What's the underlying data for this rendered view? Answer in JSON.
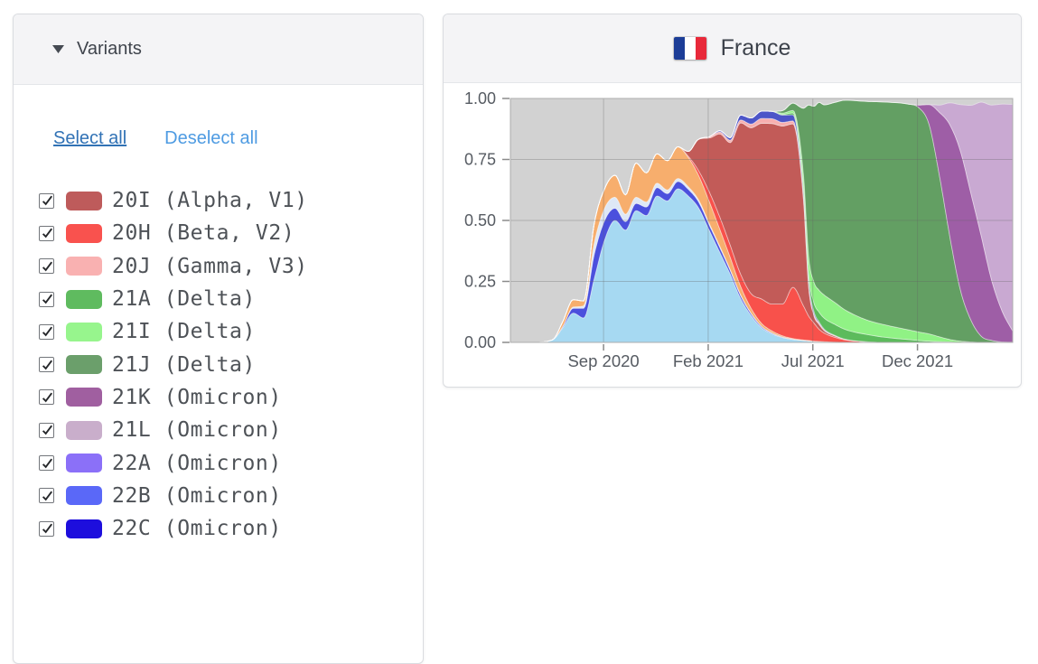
{
  "sidebar": {
    "title": "Variants",
    "select_all": "Select all",
    "deselect_all": "Deselect all",
    "variants": [
      {
        "label": "20I (Alpha, V1)",
        "color": "#BE5B5B",
        "checked": true
      },
      {
        "label": "20H (Beta, V2)",
        "color": "#F9524E",
        "checked": true
      },
      {
        "label": "20J (Gamma, V3)",
        "color": "#F9B1B1",
        "checked": true
      },
      {
        "label": "21A (Delta)",
        "color": "#5FBB5F",
        "checked": true
      },
      {
        "label": "21I (Delta)",
        "color": "#97F58D",
        "checked": true
      },
      {
        "label": "21J (Delta)",
        "color": "#6B9F6B",
        "checked": true
      },
      {
        "label": "21K (Omicron)",
        "color": "#A05FA0",
        "checked": true
      },
      {
        "label": "21L (Omicron)",
        "color": "#C9AECB",
        "checked": true
      },
      {
        "label": "22A (Omicron)",
        "color": "#8B70F8",
        "checked": true
      },
      {
        "label": "22B (Omicron)",
        "color": "#5A68F8",
        "checked": true
      },
      {
        "label": "22C (Omicron)",
        "color": "#1D0EDD",
        "checked": true
      }
    ]
  },
  "panel": {
    "country": "France",
    "flag_colors": [
      "#1C3D97",
      "#FFFFFF",
      "#E8293A"
    ]
  },
  "chart_data": {
    "type": "area",
    "stacked": true,
    "normalized": true,
    "title": "France",
    "x_unit": "months since ~mid-April 2020 (left edge of plot)",
    "x_range": [
      0,
      24
    ],
    "x_ticks": [
      {
        "label": "Sep 2020",
        "t": 4.45
      },
      {
        "label": "Feb 2021",
        "t": 9.45
      },
      {
        "label": "Jul 2021",
        "t": 14.45
      },
      {
        "label": "Dec 2021",
        "t": 19.45
      }
    ],
    "y_ticks": [
      {
        "label": "0.00",
        "v": 0
      },
      {
        "label": "0.25",
        "v": 0.25
      },
      {
        "label": "0.50",
        "v": 0.5
      },
      {
        "label": "0.75",
        "v": 0.75
      },
      {
        "label": "1.00",
        "v": 1
      }
    ],
    "ylim": [
      0,
      1
    ],
    "plot_background": "#D2D2D2",
    "background_meaning": "gray remainder = sequences not in a shown variant",
    "grid_color": "rgba(100,100,100,0.33)",
    "separator_color": "rgba(255,255,255,0.45)",
    "t": [
      0,
      1,
      2,
      2.5,
      3,
      3.5,
      4,
      4.5,
      5,
      5.5,
      6,
      6.5,
      7,
      7.5,
      8,
      8.5,
      9,
      9.5,
      10,
      10.5,
      11,
      11.5,
      12,
      12.5,
      13,
      13.5,
      14,
      14.25,
      14.5,
      14.75,
      15,
      15.5,
      16,
      17,
      18,
      19,
      19.5,
      20,
      20.5,
      21,
      21.5,
      22,
      22.5,
      23,
      23.5,
      24
    ],
    "series": [
      {
        "name": "light-blue cluster (not in visible legend)",
        "color": "#A6D9F2",
        "values": [
          0,
          0,
          0.01,
          0.06,
          0.12,
          0.1,
          0.26,
          0.42,
          0.5,
          0.46,
          0.54,
          0.52,
          0.6,
          0.58,
          0.63,
          0.6,
          0.55,
          0.46,
          0.37,
          0.28,
          0.18,
          0.11,
          0.06,
          0.035,
          0.02,
          0.012,
          0.008,
          0.006,
          0.004,
          0.003,
          0.002,
          0.001,
          0,
          0,
          0,
          0,
          0,
          0,
          0,
          0,
          0,
          0,
          0,
          0,
          0,
          0
        ]
      },
      {
        "name": "indigo-blue cluster (not in visible legend)",
        "color": "#4B50DD",
        "values": [
          0,
          0,
          0,
          0.005,
          0.02,
          0.04,
          0.1,
          0.08,
          0.05,
          0.035,
          0.03,
          0.035,
          0.035,
          0.03,
          0.03,
          0.028,
          0.025,
          0.022,
          0.02,
          0.015,
          0.012,
          0.008,
          0.005,
          0.003,
          0.002,
          0.001,
          0,
          0,
          0,
          0,
          0,
          0,
          0,
          0,
          0,
          0,
          0,
          0,
          0,
          0,
          0,
          0,
          0,
          0,
          0,
          0
        ]
      },
      {
        "name": "pale-blue cluster (not in visible legend)",
        "color": "#DEE8F6",
        "values": [
          0,
          0,
          0,
          0,
          0.005,
          0.01,
          0.045,
          0.05,
          0.045,
          0.03,
          0.025,
          0.02,
          0.018,
          0.015,
          0.012,
          0.01,
          0.008,
          0.006,
          0.005,
          0.004,
          0.003,
          0.002,
          0.001,
          0.001,
          0,
          0,
          0,
          0,
          0,
          0,
          0,
          0,
          0,
          0,
          0,
          0,
          0,
          0,
          0,
          0,
          0,
          0,
          0,
          0,
          0,
          0
        ]
      },
      {
        "name": "orange cluster (not in visible legend)",
        "color": "#F7AE6D",
        "values": [
          0,
          0,
          0,
          0.02,
          0.03,
          0.02,
          0.08,
          0.08,
          0.09,
          0.08,
          0.14,
          0.12,
          0.12,
          0.12,
          0.13,
          0.12,
          0.1,
          0.09,
          0.07,
          0.05,
          0.035,
          0.02,
          0.012,
          0.008,
          0.005,
          0.003,
          0.002,
          0.002,
          0.001,
          0.001,
          0.001,
          0,
          0,
          0,
          0,
          0,
          0,
          0,
          0,
          0,
          0,
          0,
          0,
          0,
          0,
          0
        ]
      },
      {
        "name": "20H (Beta, V2)",
        "color": "#F8514B",
        "values": [
          0,
          0,
          0,
          0,
          0,
          0,
          0,
          0,
          0,
          0,
          0,
          0,
          0,
          0,
          0,
          0.005,
          0.02,
          0.04,
          0.05,
          0.05,
          0.05,
          0.06,
          0.1,
          0.11,
          0.13,
          0.21,
          0.14,
          0.1,
          0.075,
          0.05,
          0.035,
          0.02,
          0.01,
          0.003,
          0,
          0,
          0,
          0,
          0,
          0,
          0,
          0,
          0,
          0,
          0,
          0
        ]
      },
      {
        "name": "20I (Alpha, V1)",
        "color": "#C25B58",
        "values": [
          0,
          0,
          0,
          0,
          0,
          0,
          0,
          0,
          0,
          0,
          0,
          0,
          0,
          0,
          0,
          0.02,
          0.13,
          0.22,
          0.34,
          0.42,
          0.62,
          0.68,
          0.72,
          0.74,
          0.73,
          0.67,
          0.44,
          0.12,
          0.03,
          0.02,
          0.01,
          0.005,
          0.002,
          0,
          0,
          0,
          0,
          0,
          0,
          0,
          0,
          0,
          0,
          0,
          0,
          0
        ]
      },
      {
        "name": "20J (Gamma, V3)",
        "color": "#F7AFAF",
        "values": [
          0,
          0,
          0,
          0,
          0,
          0,
          0,
          0,
          0,
          0,
          0,
          0,
          0,
          0,
          0,
          0,
          0,
          0.005,
          0.008,
          0.01,
          0.012,
          0.015,
          0.02,
          0.02,
          0.015,
          0.012,
          0.01,
          0.01,
          0.008,
          0.005,
          0.003,
          0.002,
          0.001,
          0,
          0,
          0,
          0,
          0,
          0,
          0,
          0,
          0,
          0,
          0,
          0,
          0
        ]
      },
      {
        "name": "blue top-band cluster (not in visible legend)",
        "color": "#4C55C8",
        "values": [
          0,
          0,
          0,
          0,
          0,
          0,
          0,
          0,
          0,
          0,
          0,
          0,
          0,
          0,
          0,
          0,
          0,
          0,
          0.005,
          0.01,
          0.02,
          0.025,
          0.03,
          0.03,
          0.03,
          0.025,
          0.02,
          0.015,
          0.01,
          0.005,
          0.003,
          0.001,
          0,
          0,
          0,
          0,
          0,
          0,
          0,
          0,
          0,
          0,
          0,
          0,
          0,
          0
        ]
      },
      {
        "name": "21A (Delta)",
        "color": "#5CBB5C",
        "values": [
          0,
          0,
          0,
          0,
          0,
          0,
          0,
          0,
          0,
          0,
          0,
          0,
          0,
          0,
          0,
          0,
          0,
          0,
          0,
          0,
          0,
          0,
          0,
          0,
          0.003,
          0.008,
          0.02,
          0.03,
          0.035,
          0.04,
          0.045,
          0.045,
          0.04,
          0.03,
          0.02,
          0.012,
          0.008,
          0.005,
          0.003,
          0.002,
          0,
          0,
          0,
          0,
          0,
          0
        ]
      },
      {
        "name": "21I (Delta)",
        "color": "#90F285",
        "values": [
          0,
          0,
          0,
          0,
          0,
          0,
          0,
          0,
          0,
          0,
          0,
          0,
          0,
          0,
          0,
          0,
          0,
          0,
          0,
          0,
          0,
          0,
          0,
          0,
          0.005,
          0.01,
          0.05,
          0.07,
          0.085,
          0.09,
          0.095,
          0.09,
          0.08,
          0.06,
          0.05,
          0.04,
          0.035,
          0.03,
          0.02,
          0.01,
          0.005,
          0.002,
          0,
          0,
          0,
          0
        ]
      },
      {
        "name": "21J (Delta)",
        "color": "#639F63",
        "values": [
          0,
          0,
          0,
          0,
          0,
          0,
          0,
          0,
          0,
          0,
          0,
          0,
          0,
          0,
          0,
          0,
          0,
          0,
          0,
          0,
          0,
          0,
          0,
          0,
          0.01,
          0.03,
          0.27,
          0.62,
          0.72,
          0.77,
          0.78,
          0.82,
          0.86,
          0.895,
          0.915,
          0.925,
          0.92,
          0.86,
          0.66,
          0.42,
          0.21,
          0.09,
          0.025,
          0.008,
          0.002,
          0.001
        ]
      },
      {
        "name": "21K (Omicron)",
        "color": "#9E5EA6",
        "values": [
          0,
          0,
          0,
          0,
          0,
          0,
          0,
          0,
          0,
          0,
          0,
          0,
          0,
          0,
          0,
          0,
          0,
          0,
          0,
          0,
          0,
          0,
          0,
          0,
          0,
          0,
          0,
          0,
          0,
          0,
          0,
          0,
          0,
          0,
          0,
          0,
          0.01,
          0.08,
          0.26,
          0.46,
          0.57,
          0.52,
          0.41,
          0.245,
          0.125,
          0.045
        ]
      },
      {
        "name": "21L (Omicron)",
        "color": "#C9A9D2",
        "values": [
          0,
          0,
          0,
          0,
          0,
          0,
          0,
          0,
          0,
          0,
          0,
          0,
          0,
          0,
          0,
          0,
          0,
          0,
          0,
          0,
          0,
          0,
          0,
          0,
          0,
          0,
          0,
          0,
          0,
          0,
          0,
          0,
          0,
          0,
          0,
          0,
          0,
          0,
          0.03,
          0.09,
          0.19,
          0.36,
          0.55,
          0.72,
          0.85,
          0.93
        ]
      }
    ]
  }
}
